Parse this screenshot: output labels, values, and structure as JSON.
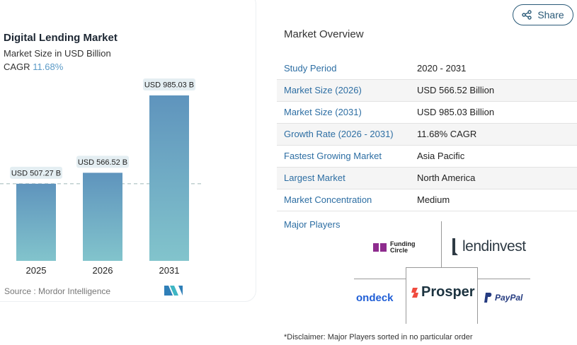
{
  "header": {
    "share_label": "Share",
    "share_icon": "share-icon"
  },
  "chart_data": {
    "type": "bar",
    "title": "Digital Lending Market",
    "subtitle": "Market Size in USD Billion",
    "cagr_label": "CAGR",
    "cagr_value": "11.68%",
    "categories": [
      "2025",
      "2026",
      "2031"
    ],
    "values": [
      507.27,
      566.52,
      985.03
    ],
    "data_labels": [
      "USD 507.27 B",
      "USD 566.52 B",
      "USD 985.03 B"
    ],
    "reference_line": 507.27,
    "source": "Source :  Mordor Intelligence",
    "colors": {
      "bar_top": "#5f94bd",
      "bar_bottom": "#82c4cc",
      "cagr": "#5b9ac7"
    }
  },
  "overview": {
    "title": "Market Overview",
    "rows": [
      {
        "key": "Study Period",
        "value": "2020 - 2031"
      },
      {
        "key": "Market Size (2026)",
        "value": "USD 566.52 Billion"
      },
      {
        "key": "Market Size (2031)",
        "value": "USD 985.03 Billion"
      },
      {
        "key": "Growth Rate (2026 - 2031)",
        "value": "11.68% CAGR"
      },
      {
        "key": "Fastest Growing Market",
        "value": "Asia Pacific"
      },
      {
        "key": "Largest Market",
        "value": "North America"
      },
      {
        "key": "Market Concentration",
        "value": "Medium"
      }
    ],
    "major_players_label": "Major Players",
    "players": [
      "Funding Circle",
      "lendinvest",
      "ondeck",
      "Prosper",
      "PayPal"
    ],
    "disclaimer": "*Disclaimer: Major Players sorted in no particular order"
  }
}
